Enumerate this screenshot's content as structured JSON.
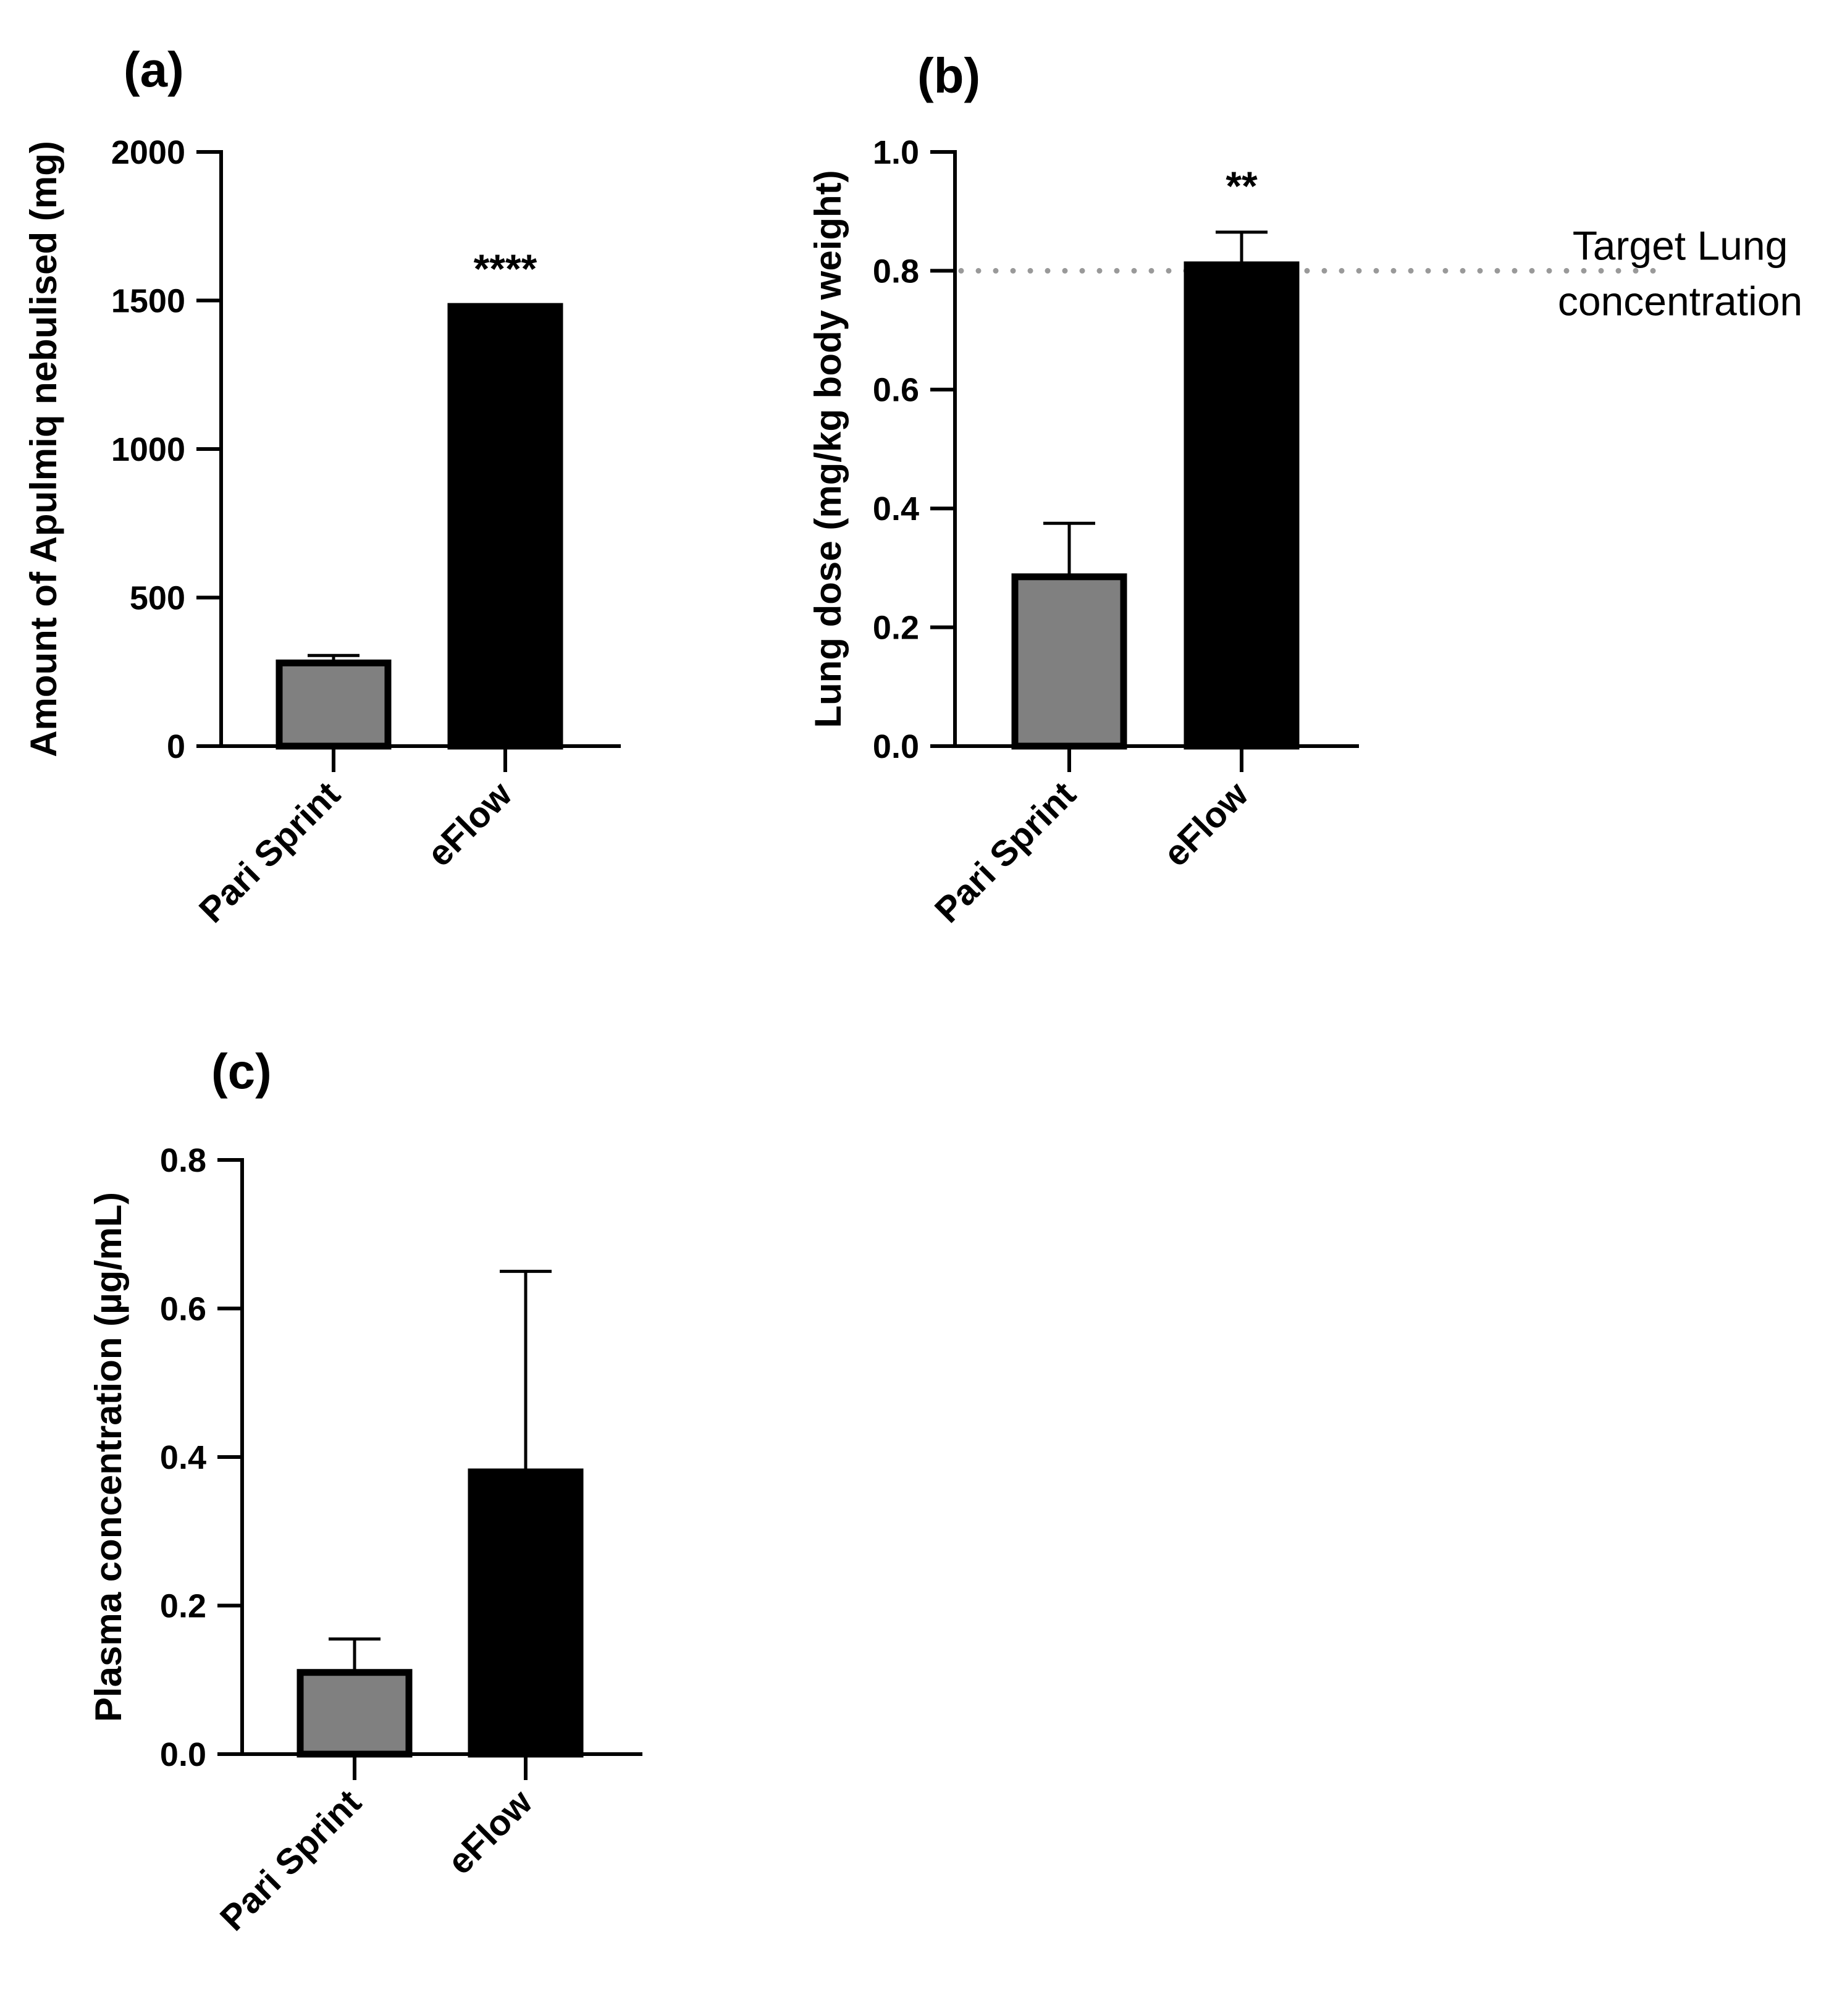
{
  "chart_data": [
    {
      "panel": "(a)",
      "type": "bar",
      "categories": [
        "Pari Sprint",
        "eFlow"
      ],
      "values": [
        280,
        1480
      ],
      "errors": [
        25,
        0
      ],
      "bar_colors": [
        "#808080",
        "#000000"
      ],
      "ylabel": "Amount of Apulmiq nebulised (mg)",
      "xlabel": "",
      "ylim": [
        0,
        2000
      ],
      "yticks": [
        "0",
        "500",
        "1000",
        "1500",
        "2000"
      ],
      "significance": {
        "category_index": 1,
        "label": "****"
      }
    },
    {
      "panel": "(b)",
      "type": "bar",
      "categories": [
        "Pari Sprint",
        "eFlow"
      ],
      "values": [
        0.285,
        0.81
      ],
      "errors": [
        0.09,
        0.055
      ],
      "bar_colors": [
        "#808080",
        "#000000"
      ],
      "ylabel": "Lung dose (mg/kg body weight)",
      "xlabel": "",
      "ylim": [
        0,
        1.0
      ],
      "yticks": [
        "0.0",
        "0.2",
        "0.4",
        "0.6",
        "0.8",
        "1.0"
      ],
      "significance": {
        "category_index": 1,
        "label": "**"
      },
      "reference_line": {
        "y": 0.8,
        "label_line1": "Target Lung",
        "label_line2": "concentration",
        "color": "#999999"
      }
    },
    {
      "panel": "(c)",
      "type": "bar",
      "categories": [
        "Pari Sprint",
        "eFlow"
      ],
      "values": [
        0.11,
        0.38
      ],
      "errors": [
        0.045,
        0.27
      ],
      "bar_colors": [
        "#808080",
        "#000000"
      ],
      "ylabel": "Plasma concentration (µg/mL)",
      "xlabel": "",
      "ylim": [
        0,
        0.8
      ],
      "yticks": [
        "0.0",
        "0.2",
        "0.4",
        "0.6",
        "0.8"
      ]
    }
  ]
}
